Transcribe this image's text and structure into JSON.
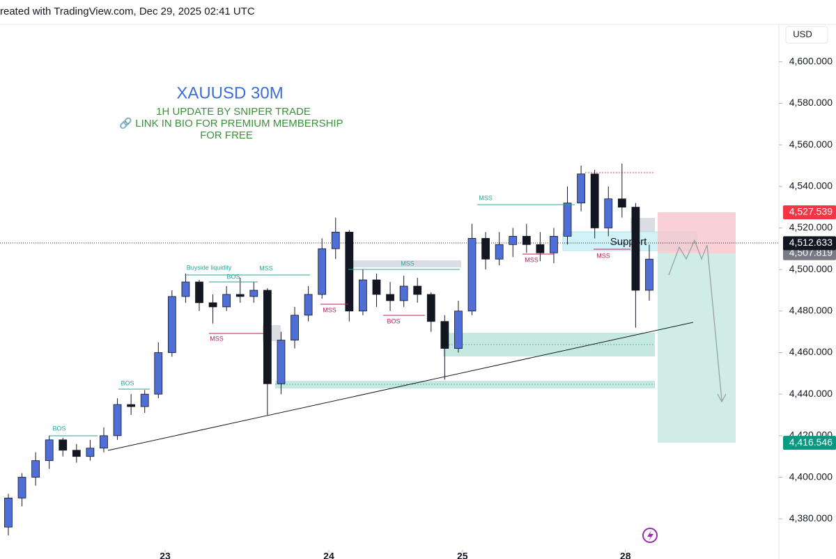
{
  "chart_data": {
    "type": "candlestick",
    "header": "reated with TradingView.com, Dec 29, 2025 02:41 UTC",
    "currency": "USD",
    "title": "XAUUSD 30M",
    "subtitle": [
      "1H UPDATE BY SNIPER TRADE",
      "🔗 LINK IN BIO FOR PREMIUM MEMBERSHIP",
      "FOR FREE"
    ],
    "up_color": "#4f6fd6",
    "down_color": "#131722",
    "x": [
      -23,
      -21,
      -19,
      -17,
      -15,
      -13,
      -11,
      -9,
      -7,
      -5,
      -3,
      -1,
      1,
      3,
      5,
      7,
      9,
      11,
      13,
      15,
      17,
      19,
      21,
      23,
      25,
      27,
      29,
      31,
      33,
      35,
      37,
      39,
      41,
      43,
      45,
      47,
      49,
      51,
      53,
      55,
      57,
      59,
      61,
      63,
      65,
      67,
      69,
      71
    ],
    "open": [
      4376,
      4390,
      4400,
      4408,
      4418,
      4413,
      4410,
      4414,
      4420,
      4435,
      4434,
      4440,
      4460,
      4487,
      4494,
      4484,
      4482,
      4488,
      4487,
      4490,
      4445,
      4466,
      4478,
      4488,
      4510,
      4518,
      4480,
      4495,
      4488,
      4485,
      4492,
      4488,
      4475,
      4462,
      4480,
      4515,
      4505,
      4512,
      4516,
      4512,
      4508,
      4516,
      4532,
      4546,
      4520,
      4534,
      4530,
      4490
    ],
    "high": [
      4392,
      4402,
      4412,
      4420,
      4419,
      4416,
      4418,
      4424,
      4438,
      4440,
      4442,
      4465,
      4490,
      4498,
      4495,
      4488,
      4492,
      4496,
      4494,
      4491,
      4470,
      4482,
      4492,
      4515,
      4525,
      4519,
      4500,
      4498,
      4494,
      4497,
      4496,
      4489,
      4478,
      4485,
      4522,
      4518,
      4518,
      4520,
      4522,
      4518,
      4520,
      4540,
      4550,
      4548,
      4540,
      4551,
      4532,
      4512
    ],
    "low": [
      4372,
      4386,
      4396,
      4404,
      4410,
      4407,
      4408,
      4412,
      4418,
      4430,
      4431,
      4438,
      4458,
      4484,
      4480,
      4474,
      4480,
      4484,
      4484,
      4430,
      4440,
      4462,
      4475,
      4486,
      4505,
      4475,
      4478,
      4482,
      4480,
      4482,
      4484,
      4470,
      4447,
      4460,
      4478,
      4500,
      4502,
      4506,
      4508,
      4504,
      4503,
      4512,
      4528,
      4515,
      4516,
      4525,
      4472,
      4485
    ],
    "close": [
      4390,
      4400,
      4408,
      4418,
      4413,
      4410,
      4414,
      4420,
      4435,
      4434,
      4440,
      4460,
      4487,
      4494,
      4484,
      4482,
      4488,
      4487,
      4490,
      4445,
      4466,
      4478,
      4488,
      4510,
      4518,
      4480,
      4495,
      4488,
      4485,
      4492,
      4488,
      4475,
      4462,
      4480,
      4515,
      4505,
      4512,
      4516,
      4512,
      4508,
      4516,
      4532,
      4546,
      4520,
      4534,
      4530,
      4490,
      4505
    ],
    "xlim": [
      -23.2,
      89.7
    ],
    "xticks": [
      {
        "value": 0,
        "label": "23"
      },
      {
        "value": 24,
        "label": "24"
      },
      {
        "value": 43.6,
        "label": "25"
      },
      {
        "value": 67.5,
        "label": "28"
      }
    ],
    "ylim": [
      4365,
      4618
    ],
    "yticks": [
      {
        "value": 4380,
        "label": "4,380.000"
      },
      {
        "value": 4400,
        "label": "4,400.000"
      },
      {
        "value": 4420,
        "label": "4,420.000"
      },
      {
        "value": 4440,
        "label": "4,440.000"
      },
      {
        "value": 4460,
        "label": "4,460.000"
      },
      {
        "value": 4480,
        "label": "4,480.000"
      },
      {
        "value": 4500,
        "label": "4,500.000"
      },
      {
        "value": 4520,
        "label": "4,520.000"
      },
      {
        "value": 4540,
        "label": "4,540.000"
      },
      {
        "value": 4560,
        "label": "4,560.000"
      },
      {
        "value": 4580,
        "label": "4,580.000"
      },
      {
        "value": 4600,
        "label": "4,600.000"
      }
    ],
    "price_labels": [
      {
        "value": 4527.539,
        "label": "4,527.539",
        "color": "#f23645"
      },
      {
        "value": 4507.819,
        "label": "4,507.819",
        "color": "#787b86"
      },
      {
        "value": 4512.633,
        "label": "4,512.633",
        "color": "#131722"
      },
      {
        "value": 4416.546,
        "label": "4,416.546",
        "color": "#089981"
      }
    ],
    "annotations": [
      "BOS",
      "BOS",
      "Buyside liquidity",
      "BOS",
      "MSS",
      "MSS",
      "MSS",
      "MSS",
      "BOS",
      "MSS",
      "MSS",
      "MSS",
      "Support"
    ]
  }
}
